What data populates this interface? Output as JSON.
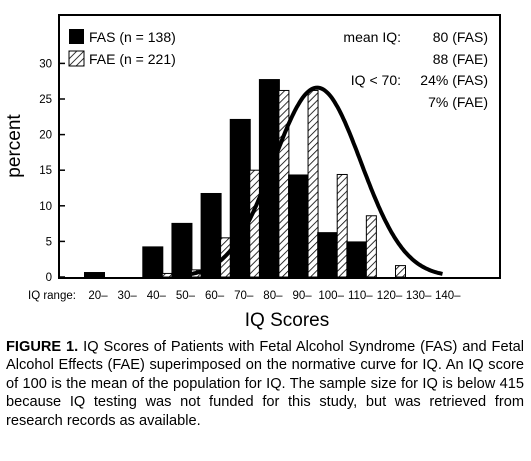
{
  "chart_data": {
    "type": "bar",
    "xlabel": "IQ Scores",
    "ylabel": "percent",
    "x_row_label": "IQ range:",
    "categories": [
      "20–",
      "30–",
      "40–",
      "50–",
      "60–",
      "70–",
      "80–",
      "90–",
      "100–",
      "110–",
      "120–",
      "130–",
      "140–"
    ],
    "ylim": [
      0,
      32
    ],
    "yticks": [
      0,
      5,
      10,
      15,
      20,
      25,
      30
    ],
    "series": [
      {
        "name": "FAS (n = 138)",
        "style": "solid",
        "color": "#000000",
        "values": [
          0.7,
          0,
          4.3,
          7.6,
          11.8,
          22.2,
          27.8,
          14.4,
          6.3,
          5.0,
          0,
          0,
          0
        ]
      },
      {
        "name": "FAE (n = 221)",
        "style": "hatched",
        "color": "#000000",
        "values": [
          0,
          0,
          0.5,
          1.0,
          5.5,
          15.0,
          26.2,
          26.2,
          14.4,
          8.6,
          1.6,
          0,
          0
        ]
      }
    ],
    "normal_curve": {
      "mean": 100,
      "sd": 15,
      "peak_percent": 26.6
    },
    "annotations": [
      {
        "label": "mean IQ:",
        "value": "80 (FAS)"
      },
      {
        "label": "",
        "value": "88 (FAE)"
      },
      {
        "label": "IQ < 70:",
        "value": "24% (FAS)"
      },
      {
        "label": "",
        "value": "7% (FAE)"
      }
    ],
    "legend_position": "top-left"
  },
  "caption": {
    "label": "FIGURE 1.",
    "text": "IQ Scores of Patients with Fetal Alcohol Syndrome (FAS) and Fetal Alcohol Effects (FAE) superimposed on the normative curve for IQ. An IQ score of 100 is the mean of the population for IQ. The sample size for IQ is below 415 because IQ testing was not funded for this study, but was retrieved from research records as available."
  }
}
